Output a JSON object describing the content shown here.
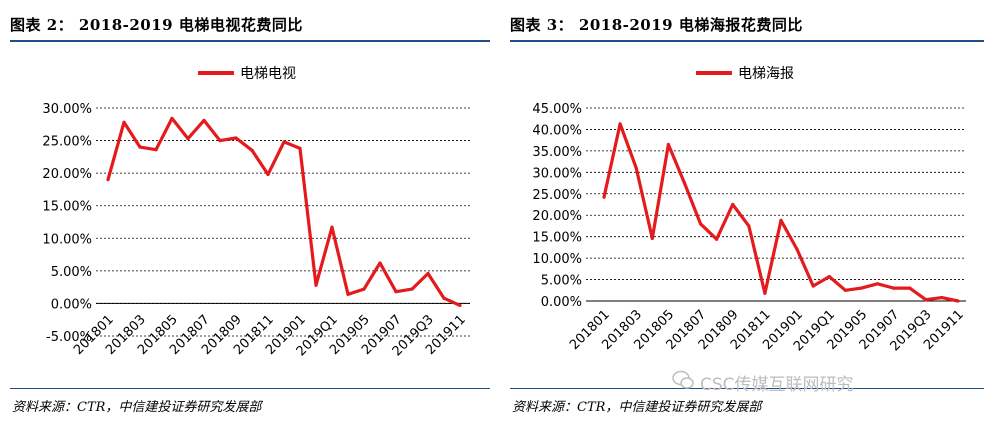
{
  "left": {
    "title": "图表 2：  2018-2019 电梯电视花费同比",
    "source": "资料来源：CTR，中信建投证券研究发展部"
  },
  "right": {
    "title": "图表 3：  2018-2019 电梯海报花费同比",
    "source": "资料来源：CTR，中信建投证券研究发展部"
  },
  "watermark": "CSC传媒互联网研究",
  "colors": {
    "line": "#e41a1c",
    "rule": "#1f4e8c",
    "grid": "#000000"
  },
  "chart_data": [
    {
      "type": "line",
      "title": "",
      "series": [
        {
          "name": "电梯电视",
          "values": [
            19.0,
            27.8,
            24.0,
            23.6,
            28.4,
            25.3,
            28.1,
            25.0,
            25.4,
            23.5,
            19.8,
            24.8,
            23.8,
            2.8,
            11.7,
            1.4,
            2.2,
            6.2,
            1.8,
            2.2,
            4.6,
            0.8,
            -0.3
          ]
        }
      ],
      "x_ticks": [
        "201801",
        "201803",
        "201805",
        "201807",
        "201809",
        "201811",
        "201901",
        "2019Q1",
        "201905",
        "201907",
        "2019Q3",
        "201911"
      ],
      "y_ticks": [
        "30.00%",
        "25.00%",
        "20.00%",
        "15.00%",
        "10.00%",
        "5.00%",
        "0.00%",
        "-5.00%"
      ],
      "ylim": [
        -5,
        30
      ],
      "grid": true,
      "legend": "top"
    },
    {
      "type": "line",
      "title": "",
      "series": [
        {
          "name": "电梯海报",
          "values": [
            24.2,
            41.3,
            31.0,
            14.6,
            36.5,
            27.5,
            18.0,
            14.4,
            22.5,
            17.5,
            1.8,
            18.8,
            12.0,
            3.5,
            5.7,
            2.5,
            3.0,
            4.0,
            3.0,
            3.0,
            0.3,
            0.8,
            0.0
          ]
        }
      ],
      "x_ticks": [
        "201801",
        "201803",
        "201805",
        "201807",
        "201809",
        "201811",
        "201901",
        "2019Q1",
        "201905",
        "201907",
        "2019Q3",
        "201911"
      ],
      "y_ticks": [
        "45.00%",
        "40.00%",
        "35.00%",
        "30.00%",
        "25.00%",
        "20.00%",
        "15.00%",
        "10.00%",
        "5.00%",
        "0.00%"
      ],
      "ylim": [
        0,
        45
      ],
      "grid": true,
      "legend": "top"
    }
  ]
}
